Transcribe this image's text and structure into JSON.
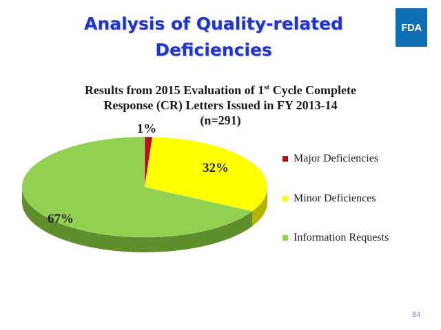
{
  "slide": {
    "title_line1": "Analysis of Quality-related",
    "title_line2": "Deficiencies",
    "logo_text": "FDA",
    "page_number": "84"
  },
  "chart_data": {
    "type": "pie",
    "title_parts": {
      "line1_pre": "Results from 2015 Evaluation of 1",
      "line1_sup": "st",
      "line1_post": " Cycle Complete",
      "line2": "Response (CR) Letters Issued in FY 2013-14",
      "line3": "(n=291)"
    },
    "categories": [
      "Major Deficiencies",
      "Minor Deficiences",
      "Information Requests"
    ],
    "values": [
      1,
      32,
      67
    ],
    "data_labels": [
      "1%",
      "32%",
      "67%"
    ],
    "colors": [
      "#b31217",
      "#ffff00",
      "#92d050"
    ],
    "side_colors": [
      "#7a0c0f",
      "#b3b300",
      "#5e8f2c"
    ],
    "legend_position": "right",
    "style": "3d"
  }
}
